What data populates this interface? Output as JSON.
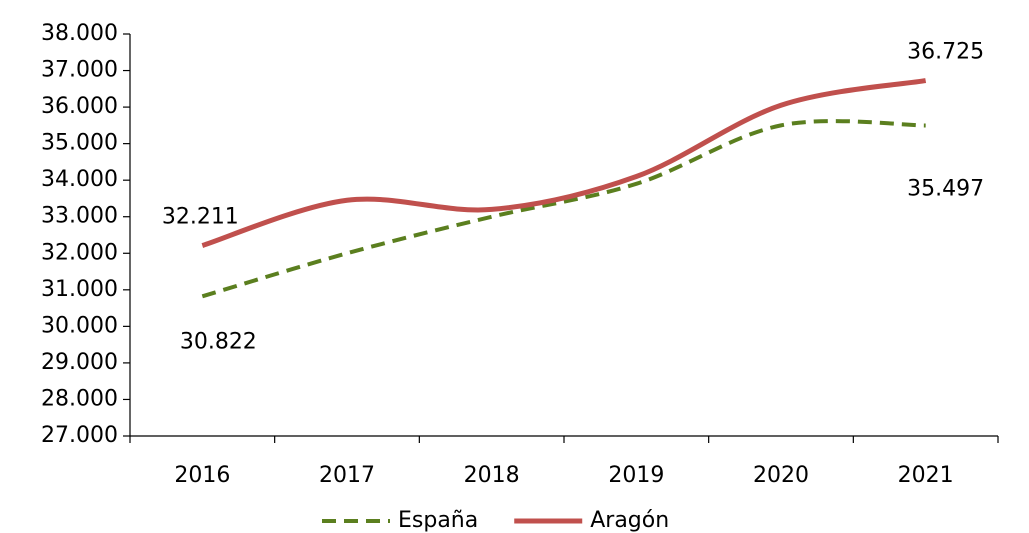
{
  "chart_data": {
    "type": "line",
    "categories": [
      "2016",
      "2017",
      "2018",
      "2019",
      "2020",
      "2021"
    ],
    "series": [
      {
        "name": "España",
        "color": "#5b7f1f",
        "dash": true,
        "values": [
          30822,
          32000,
          33000,
          33900,
          35500,
          35497
        ],
        "value_labels": [
          "30.822",
          null,
          null,
          null,
          null,
          "35.497"
        ]
      },
      {
        "name": "Aragón",
        "color": "#c0504d",
        "dash": false,
        "values": [
          32211,
          33450,
          33200,
          34100,
          36050,
          36725
        ],
        "value_labels": [
          "32.211",
          null,
          null,
          null,
          null,
          "36.725"
        ]
      }
    ],
    "ylim": [
      27000,
      38000
    ],
    "yticks": [
      {
        "value": 27000,
        "label": "27.000"
      },
      {
        "value": 28000,
        "label": "28.000"
      },
      {
        "value": 29000,
        "label": "29.000"
      },
      {
        "value": 30000,
        "label": "30.000"
      },
      {
        "value": 31000,
        "label": "31.000"
      },
      {
        "value": 32000,
        "label": "32.000"
      },
      {
        "value": 33000,
        "label": "33.000"
      },
      {
        "value": 34000,
        "label": "34.000"
      },
      {
        "value": 35000,
        "label": "35.000"
      },
      {
        "value": 36000,
        "label": "36.000"
      },
      {
        "value": 37000,
        "label": "37.000"
      },
      {
        "value": 38000,
        "label": "38.000"
      }
    ],
    "grid": false,
    "legend": "bottom"
  }
}
